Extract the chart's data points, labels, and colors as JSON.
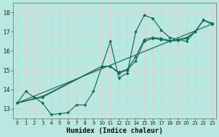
{
  "title": "",
  "xlabel": "Humidex (Indice chaleur)",
  "ylabel": "",
  "bg_color": "#b8e8e0",
  "line_color": "#1a6b5a",
  "grid_color": "#d9f0ec",
  "xlim": [
    -0.5,
    23.5
  ],
  "ylim": [
    12.5,
    18.5
  ],
  "xticks": [
    0,
    1,
    2,
    3,
    4,
    5,
    6,
    7,
    8,
    9,
    10,
    11,
    12,
    13,
    14,
    15,
    16,
    17,
    18,
    19,
    20,
    21,
    22,
    23
  ],
  "yticks": [
    13,
    14,
    15,
    16,
    17,
    18
  ],
  "series": [
    {
      "x": [
        0,
        1,
        2,
        3,
        4,
        5,
        6,
        7,
        8,
        9,
        10,
        11,
        12,
        13,
        14,
        15,
        16,
        17,
        18,
        19,
        20,
        21,
        22,
        23
      ],
      "y": [
        13.3,
        13.9,
        13.6,
        13.3,
        12.7,
        12.75,
        12.8,
        13.2,
        13.2,
        13.9,
        15.2,
        16.5,
        14.6,
        14.85,
        17.0,
        17.85,
        17.7,
        17.1,
        16.7,
        16.6,
        16.5,
        17.0,
        17.6,
        17.4
      ]
    },
    {
      "x": [
        0,
        3,
        10,
        11,
        12,
        13,
        14,
        15,
        16,
        17,
        18,
        19,
        20,
        21,
        22,
        23
      ],
      "y": [
        13.3,
        13.6,
        15.2,
        15.2,
        14.85,
        15.0,
        15.5,
        16.5,
        16.65,
        16.6,
        16.5,
        16.55,
        16.65,
        17.0,
        17.6,
        17.4
      ]
    },
    {
      "x": [
        0,
        3,
        10,
        11,
        12,
        13,
        14,
        15,
        16,
        17,
        18,
        19,
        20,
        21,
        22,
        23
      ],
      "y": [
        13.3,
        13.65,
        15.2,
        15.2,
        14.9,
        15.05,
        15.7,
        16.6,
        16.7,
        16.65,
        16.55,
        16.6,
        16.7,
        17.0,
        17.6,
        17.45
      ]
    },
    {
      "x": [
        0,
        23
      ],
      "y": [
        13.3,
        17.4
      ]
    }
  ]
}
